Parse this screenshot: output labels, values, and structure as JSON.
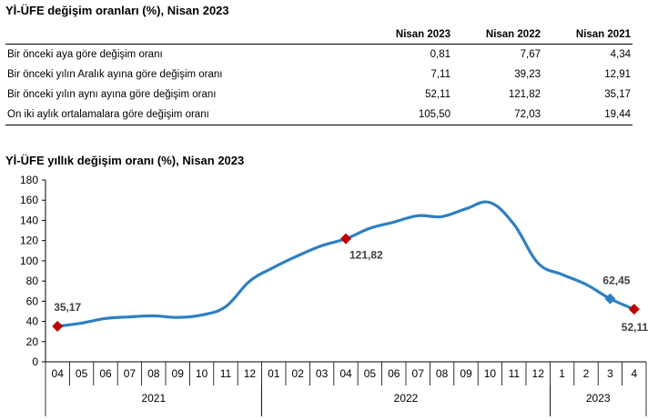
{
  "table": {
    "title": "Yİ-ÜFE değişim oranları (%), Nisan 2023",
    "headers": [
      "",
      "Nisan 2023",
      "Nisan 2022",
      "Nisan 2021"
    ],
    "rows": [
      {
        "label": "Bir önceki aya göre değişim oranı",
        "values": [
          "0,81",
          "7,67",
          "4,34"
        ]
      },
      {
        "label": "Bir önceki yılın Aralık ayına göre değişim oranı",
        "values": [
          "7,11",
          "39,23",
          "12,91"
        ]
      },
      {
        "label": "Bir önceki yılın aynı ayına göre değişim oranı",
        "values": [
          "52,11",
          "121,82",
          "35,17"
        ]
      },
      {
        "label": "On iki aylık ortalamalara göre değişim oranı",
        "values": [
          "105,50",
          "72,03",
          "19,44"
        ]
      }
    ]
  },
  "chart_data": {
    "type": "line",
    "title": "Yİ-ÜFE yıllık değişim oranı (%), Nisan 2023",
    "categories": [
      "04",
      "05",
      "06",
      "07",
      "08",
      "09",
      "10",
      "11",
      "12",
      "01",
      "02",
      "03",
      "04",
      "05",
      "06",
      "07",
      "08",
      "09",
      "10",
      "11",
      "12",
      "1",
      "2",
      "3",
      "4"
    ],
    "years": [
      {
        "label": "2021",
        "start": 0,
        "end": 8
      },
      {
        "label": "2022",
        "start": 9,
        "end": 20
      },
      {
        "label": "2023",
        "start": 21,
        "end": 24
      }
    ],
    "series": [
      {
        "values": [
          35.17,
          38.33,
          42.89,
          44.5,
          45.52,
          43.96,
          46.31,
          54.62,
          79.89,
          93.53,
          105.01,
          114.97,
          121.82,
          132.16,
          138.31,
          144.61,
          143.75,
          151.5,
          157.69,
          136.02,
          97.72,
          86.46,
          76.61,
          62.45,
          52.11
        ]
      }
    ],
    "color": "#2e7fc2",
    "ylim": [
      0,
      180
    ],
    "yticks": [
      0,
      20,
      40,
      60,
      80,
      100,
      120,
      140,
      160,
      180
    ],
    "markers": [
      {
        "index": 0,
        "label": "35,17",
        "color": "#c00000",
        "shape": "diamond"
      },
      {
        "index": 12,
        "label": "121,82",
        "color": "#c00000",
        "shape": "diamond"
      },
      {
        "index": 23,
        "label": "62,45",
        "color": "#2e7fc2",
        "shape": "diamond"
      },
      {
        "index": 24,
        "label": "52,11",
        "color": "#c00000",
        "shape": "diamond"
      }
    ],
    "grid": false
  }
}
